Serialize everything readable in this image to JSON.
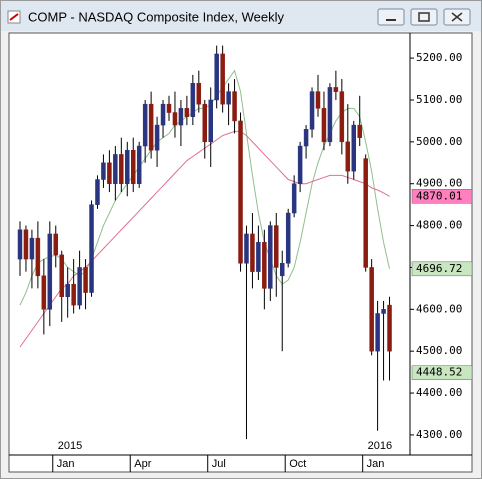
{
  "chart_data": {
    "type": "candlestick",
    "title": "COMP - NASDAQ Composite Index, Weekly",
    "categories": [
      null,
      null,
      null,
      null,
      null,
      null,
      "Jan",
      null,
      null,
      null,
      null,
      null,
      null,
      null,
      null,
      null,
      null,
      null,
      null,
      "Apr",
      null,
      null,
      null,
      null,
      null,
      null,
      null,
      null,
      null,
      null,
      null,
      null,
      "Jul",
      null,
      null,
      null,
      null,
      null,
      null,
      null,
      null,
      null,
      null,
      null,
      null,
      "Oct",
      null,
      null,
      null,
      null,
      null,
      null,
      null,
      null,
      null,
      null,
      null,
      null,
      "Jan",
      null,
      null,
      null,
      null
    ],
    "year_labels": [
      null,
      null,
      null,
      null,
      null,
      null,
      "2015",
      null,
      null,
      null,
      null,
      null,
      null,
      null,
      null,
      null,
      null,
      null,
      null,
      null,
      null,
      null,
      null,
      null,
      null,
      null,
      null,
      null,
      null,
      null,
      null,
      null,
      null,
      null,
      null,
      null,
      null,
      null,
      null,
      null,
      null,
      null,
      null,
      null,
      null,
      null,
      null,
      null,
      null,
      null,
      null,
      null,
      null,
      null,
      null,
      null,
      null,
      null,
      "2016",
      null,
      null,
      null,
      null
    ],
    "open": [
      4720,
      4790,
      4720,
      4770,
      4680,
      4600,
      4780,
      4730,
      4630,
      4660,
      4610,
      4700,
      4640,
      4850,
      4910,
      4950,
      4900,
      4970,
      4900,
      4980,
      4900,
      4990,
      5090,
      4980,
      5040,
      5090,
      5070,
      5040,
      5080,
      5060,
      5140,
      5090,
      5000,
      5100,
      5210,
      5090,
      5120,
      5050,
      4710,
      4780,
      4690,
      4760,
      4650,
      4800,
      4680,
      4710,
      4830,
      4900,
      4990,
      5030,
      5120,
      5080,
      5000,
      5130,
      5120,
      5000,
      4930,
      5040,
      4960,
      4700,
      4500,
      4590,
      4610
    ],
    "high": [
      4810,
      4800,
      4790,
      4810,
      4720,
      4810,
      4800,
      4740,
      4700,
      4720,
      4740,
      4720,
      4860,
      4920,
      4970,
      4980,
      4990,
      5010,
      5000,
      5010,
      5000,
      5100,
      5120,
      5060,
      5100,
      5110,
      5120,
      5100,
      5110,
      5160,
      5170,
      5100,
      5130,
      5230,
      5230,
      5140,
      5150,
      5070,
      4800,
      4830,
      4800,
      4790,
      4810,
      4830,
      4740,
      4840,
      4920,
      5000,
      5040,
      5130,
      5160,
      5120,
      5140,
      5170,
      5150,
      5090,
      5050,
      5110,
      4970,
      4720,
      4620,
      4620,
      4630
    ],
    "low": [
      4680,
      4690,
      4650,
      4650,
      4540,
      4560,
      4700,
      4570,
      4580,
      4590,
      4600,
      4600,
      4630,
      4840,
      4890,
      4880,
      4860,
      4880,
      4870,
      4880,
      4890,
      4950,
      4960,
      4940,
      5010,
      5050,
      5010,
      4990,
      5040,
      5040,
      5070,
      4960,
      4940,
      5080,
      5070,
      5040,
      5020,
      4690,
      4290,
      4650,
      4670,
      4600,
      4620,
      4630,
      4500,
      4700,
      4820,
      4880,
      4960,
      5010,
      5060,
      4980,
      4990,
      5100,
      4970,
      4900,
      4910,
      4990,
      4690,
      4490,
      4310,
      4430,
      4430
    ],
    "close": [
      4790,
      4720,
      4770,
      4680,
      4600,
      4780,
      4730,
      4630,
      4660,
      4610,
      4700,
      4640,
      4850,
      4910,
      4950,
      4900,
      4970,
      4900,
      4980,
      4900,
      4990,
      5090,
      4980,
      5040,
      5090,
      5070,
      5040,
      5080,
      5060,
      5140,
      5090,
      5000,
      5100,
      5210,
      5090,
      5120,
      5050,
      4710,
      4780,
      4690,
      4760,
      4650,
      4800,
      4700,
      4710,
      4830,
      4900,
      4990,
      5030,
      5120,
      5080,
      5000,
      5130,
      5120,
      5000,
      4930,
      5040,
      5010,
      4700,
      4500,
      4590,
      4600,
      4500
    ],
    "up_color": "#2a3580",
    "down_color": "#8a1c10",
    "lines": [
      {
        "color": "#8fbf8f",
        "values": [
          4610,
          4640,
          4680,
          4710,
          4720,
          4725,
          4730,
          4720,
          4700,
          4690,
          4680,
          4690,
          4720,
          4760,
          4800,
          4830,
          4860,
          4880,
          4900,
          4920,
          4940,
          4960,
          4980,
          5000,
          5010,
          5020,
          5040,
          5050,
          5060,
          5070,
          5080,
          5080,
          5090,
          5110,
          5130,
          5150,
          5170,
          5120,
          5020,
          4920,
          4830,
          4760,
          4720,
          4680,
          4660,
          4670,
          4700,
          4760,
          4830,
          4900,
          4950,
          4990,
          5020,
          5050,
          5070,
          5080,
          5080,
          5060,
          5000,
          4930,
          4840,
          4760,
          4696.72
        ]
      },
      {
        "color": "#e07090",
        "values": [
          4510,
          4530,
          4550,
          4570,
          4590,
          4610,
          4630,
          4650,
          4660,
          4680,
          4690,
          4700,
          4715,
          4730,
          4745,
          4760,
          4775,
          4790,
          4805,
          4820,
          4835,
          4850,
          4865,
          4880,
          4895,
          4910,
          4925,
          4940,
          4955,
          4965,
          4975,
          4985,
          4995,
          5005,
          5015,
          5020,
          5025,
          5025,
          5015,
          5000,
          4985,
          4970,
          4955,
          4940,
          4925,
          4910,
          4905,
          4900,
          4900,
          4905,
          4910,
          4915,
          4920,
          4920,
          4920,
          4915,
          4910,
          4905,
          4900,
          4890,
          4885,
          4878,
          4870.01
        ]
      }
    ],
    "price_labels": [
      {
        "value": 4870.01,
        "label": "4870.01",
        "color": "#ff7fbf"
      },
      {
        "value": 4696.72,
        "label": "4696.72",
        "color": "#c8e6c0"
      },
      {
        "value": 4448.52,
        "label": "4448.52",
        "color": "#c8e6c0"
      }
    ],
    "ylim": [
      4252,
      5260
    ],
    "yticks": [
      {
        "value": 4300,
        "label": "4300.00"
      },
      {
        "value": 4400,
        "label": "4400.00"
      },
      {
        "value": 4500,
        "label": "4500.00"
      },
      {
        "value": 4600,
        "label": "4600.00"
      },
      {
        "value": 4700,
        "label": "4700.00"
      },
      {
        "value": 4800,
        "label": "4800.00"
      },
      {
        "value": 4900,
        "label": "4900.00"
      },
      {
        "value": 5000,
        "label": "5000.00"
      },
      {
        "value": 5100,
        "label": "5100.00"
      },
      {
        "value": 5200,
        "label": "5200.00"
      }
    ]
  }
}
